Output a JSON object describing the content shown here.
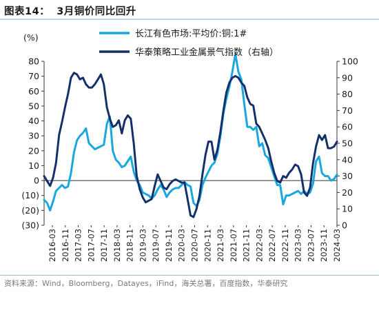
{
  "figure": {
    "label": "图表14：",
    "title": "3月铜价同比回升",
    "source": "资料来源：Wind，Bloomberg，Datayes，iFind，海关总署，百度指数，华泰研究"
  },
  "chart_data": {
    "type": "line",
    "unit_left": "(%)",
    "ylim_left": [
      -30,
      80
    ],
    "yticks_left": [
      "80",
      "70",
      "60",
      "50",
      "40",
      "30",
      "20",
      "10",
      "0",
      "(10)",
      "(20)",
      "(30)"
    ],
    "ylim_right": [
      0,
      100
    ],
    "yticks_right": [
      "100",
      "90",
      "80",
      "70",
      "60",
      "50",
      "40",
      "30",
      "20",
      "10",
      "0"
    ],
    "xtick_labels": [
      "2016-03",
      "2016-11",
      "2017-03",
      "2017-07",
      "2017-11",
      "2018-03",
      "2018-11",
      "2019-03",
      "2019-07",
      "2019-11",
      "2020-03",
      "2020-07",
      "2020-11",
      "2021-03",
      "2021-07",
      "2021-11",
      "2022-03",
      "2022-07",
      "2022-11",
      "2023-03",
      "2023-07",
      "2023-11",
      "2024-03"
    ],
    "grid": false,
    "legend_position": "top-right",
    "x_range": [
      "2016-01",
      "2024-03"
    ],
    "series": [
      {
        "name": "长江有色市场:平均价:铜:1#",
        "axis": "left",
        "color": "#1aa6de",
        "points": [
          [
            "2016-01",
            -13
          ],
          [
            "2016-02",
            -15
          ],
          [
            "2016-03",
            -20
          ],
          [
            "2016-04",
            -14
          ],
          [
            "2016-05",
            -7
          ],
          [
            "2016-06",
            -5
          ],
          [
            "2016-07",
            -3
          ],
          [
            "2016-08",
            -5
          ],
          [
            "2016-09",
            -4
          ],
          [
            "2016-10",
            5
          ],
          [
            "2016-11",
            19
          ],
          [
            "2016-12",
            27
          ],
          [
            "2017-01",
            30
          ],
          [
            "2017-02",
            32
          ],
          [
            "2017-03",
            35
          ],
          [
            "2017-04",
            25
          ],
          [
            "2017-05",
            23
          ],
          [
            "2017-06",
            21
          ],
          [
            "2017-07",
            22
          ],
          [
            "2017-08",
            23
          ],
          [
            "2017-09",
            24
          ],
          [
            "2017-10",
            38
          ],
          [
            "2017-11",
            43
          ],
          [
            "2017-12",
            20
          ],
          [
            "2018-01",
            14
          ],
          [
            "2018-02",
            12
          ],
          [
            "2018-03",
            9
          ],
          [
            "2018-04",
            10
          ],
          [
            "2018-05",
            13
          ],
          [
            "2018-06",
            16
          ],
          [
            "2018-07",
            6
          ],
          [
            "2018-08",
            0
          ],
          [
            "2018-09",
            -3
          ],
          [
            "2018-10",
            -8
          ],
          [
            "2018-11",
            -9
          ],
          [
            "2018-12",
            -10
          ],
          [
            "2019-01",
            -12
          ],
          [
            "2019-02",
            -10
          ],
          [
            "2019-03",
            -6
          ],
          [
            "2019-04",
            -3
          ],
          [
            "2019-05",
            -6
          ],
          [
            "2019-06",
            -11
          ],
          [
            "2019-07",
            -8
          ],
          [
            "2019-08",
            -6
          ],
          [
            "2019-09",
            -5
          ],
          [
            "2019-10",
            -5
          ],
          [
            "2019-11",
            -3
          ],
          [
            "2019-12",
            -1
          ],
          [
            "2020-01",
            -3
          ],
          [
            "2020-02",
            -4
          ],
          [
            "2020-03",
            -15
          ],
          [
            "2020-04",
            -17
          ],
          [
            "2020-05",
            -13
          ],
          [
            "2020-06",
            -3
          ],
          [
            "2020-07",
            2
          ],
          [
            "2020-08",
            6
          ],
          [
            "2020-09",
            10
          ],
          [
            "2020-10",
            12
          ],
          [
            "2020-11",
            18
          ],
          [
            "2020-12",
            30
          ],
          [
            "2021-01",
            45
          ],
          [
            "2021-02",
            55
          ],
          [
            "2021-03",
            63
          ],
          [
            "2021-04",
            73
          ],
          [
            "2021-05",
            85
          ],
          [
            "2021-06",
            73
          ],
          [
            "2021-07",
            68
          ],
          [
            "2021-08",
            51
          ],
          [
            "2021-09",
            36
          ],
          [
            "2021-10",
            36
          ],
          [
            "2021-11",
            34
          ],
          [
            "2021-12",
            36
          ],
          [
            "2022-01",
            23
          ],
          [
            "2022-02",
            25
          ],
          [
            "2022-03",
            17
          ],
          [
            "2022-04",
            15
          ],
          [
            "2022-05",
            9
          ],
          [
            "2022-06",
            3
          ],
          [
            "2022-07",
            -3
          ],
          [
            "2022-08",
            -3
          ],
          [
            "2022-09",
            -16
          ],
          [
            "2022-10",
            -10
          ],
          [
            "2022-11",
            -10
          ],
          [
            "2022-12",
            -9
          ],
          [
            "2023-01",
            -8
          ],
          [
            "2023-02",
            -7
          ],
          [
            "2023-03",
            -9
          ],
          [
            "2023-04",
            -7
          ],
          [
            "2023-05",
            -9
          ],
          [
            "2023-06",
            -8
          ],
          [
            "2023-07",
            -2
          ],
          [
            "2023-08",
            13
          ],
          [
            "2023-09",
            16
          ],
          [
            "2023-10",
            5
          ],
          [
            "2023-11",
            3
          ],
          [
            "2023-12",
            3
          ],
          [
            "2024-01",
            0
          ],
          [
            "2024-02",
            1
          ],
          [
            "2024-03",
            4
          ]
        ]
      },
      {
        "name": "华泰策略工业金属景气指数（右轴）",
        "axis": "right",
        "color": "#14306a",
        "points": [
          [
            "2016-01",
            30
          ],
          [
            "2016-02",
            27
          ],
          [
            "2016-03",
            24
          ],
          [
            "2016-04",
            29
          ],
          [
            "2016-05",
            38
          ],
          [
            "2016-06",
            55
          ],
          [
            "2016-07",
            63
          ],
          [
            "2016-08",
            72
          ],
          [
            "2016-09",
            80
          ],
          [
            "2016-10",
            90
          ],
          [
            "2016-11",
            93
          ],
          [
            "2016-12",
            92
          ],
          [
            "2017-01",
            89
          ],
          [
            "2017-02",
            90
          ],
          [
            "2017-03",
            86
          ],
          [
            "2017-04",
            84
          ],
          [
            "2017-05",
            84
          ],
          [
            "2017-06",
            86
          ],
          [
            "2017-07",
            89
          ],
          [
            "2017-08",
            92
          ],
          [
            "2017-09",
            86
          ],
          [
            "2017-10",
            72
          ],
          [
            "2017-11",
            65
          ],
          [
            "2017-12",
            60
          ],
          [
            "2018-01",
            61
          ],
          [
            "2018-02",
            64
          ],
          [
            "2018-03",
            56
          ],
          [
            "2018-04",
            64
          ],
          [
            "2018-05",
            67
          ],
          [
            "2018-06",
            65
          ],
          [
            "2018-07",
            50
          ],
          [
            "2018-08",
            30
          ],
          [
            "2018-09",
            22
          ],
          [
            "2018-10",
            17
          ],
          [
            "2018-11",
            14
          ],
          [
            "2018-12",
            15
          ],
          [
            "2019-01",
            16
          ],
          [
            "2019-02",
            24
          ],
          [
            "2019-03",
            31
          ],
          [
            "2019-04",
            27
          ],
          [
            "2019-05",
            23
          ],
          [
            "2019-06",
            22
          ],
          [
            "2019-07",
            25
          ],
          [
            "2019-08",
            27
          ],
          [
            "2019-09",
            28
          ],
          [
            "2019-10",
            27
          ],
          [
            "2019-11",
            26
          ],
          [
            "2019-12",
            26
          ],
          [
            "2020-01",
            16
          ],
          [
            "2020-02",
            6
          ],
          [
            "2020-03",
            5
          ],
          [
            "2020-04",
            10
          ],
          [
            "2020-05",
            18
          ],
          [
            "2020-06",
            31
          ],
          [
            "2020-07",
            43
          ],
          [
            "2020-08",
            51
          ],
          [
            "2020-09",
            51
          ],
          [
            "2020-10",
            40
          ],
          [
            "2020-11",
            46
          ],
          [
            "2020-12",
            57
          ],
          [
            "2021-01",
            70
          ],
          [
            "2021-02",
            81
          ],
          [
            "2021-03",
            87
          ],
          [
            "2021-04",
            90
          ],
          [
            "2021-05",
            91
          ],
          [
            "2021-06",
            90
          ],
          [
            "2021-07",
            87
          ],
          [
            "2021-08",
            85
          ],
          [
            "2021-09",
            78
          ],
          [
            "2021-10",
            74
          ],
          [
            "2021-11",
            73
          ],
          [
            "2021-12",
            62
          ],
          [
            "2022-01",
            60
          ],
          [
            "2022-02",
            56
          ],
          [
            "2022-03",
            52
          ],
          [
            "2022-04",
            47
          ],
          [
            "2022-05",
            39
          ],
          [
            "2022-06",
            32
          ],
          [
            "2022-07",
            27
          ],
          [
            "2022-08",
            26
          ],
          [
            "2022-09",
            30
          ],
          [
            "2022-10",
            29
          ],
          [
            "2022-11",
            32
          ],
          [
            "2022-12",
            34
          ],
          [
            "2023-01",
            37
          ],
          [
            "2023-02",
            36
          ],
          [
            "2023-03",
            31
          ],
          [
            "2023-04",
            20
          ],
          [
            "2023-05",
            18
          ],
          [
            "2023-06",
            23
          ],
          [
            "2023-07",
            38
          ],
          [
            "2023-08",
            48
          ],
          [
            "2023-09",
            55
          ],
          [
            "2023-10",
            52
          ],
          [
            "2023-11",
            55
          ],
          [
            "2023-12",
            47
          ],
          [
            "2024-01",
            47
          ],
          [
            "2024-02",
            48
          ],
          [
            "2024-03",
            51
          ]
        ]
      }
    ]
  }
}
